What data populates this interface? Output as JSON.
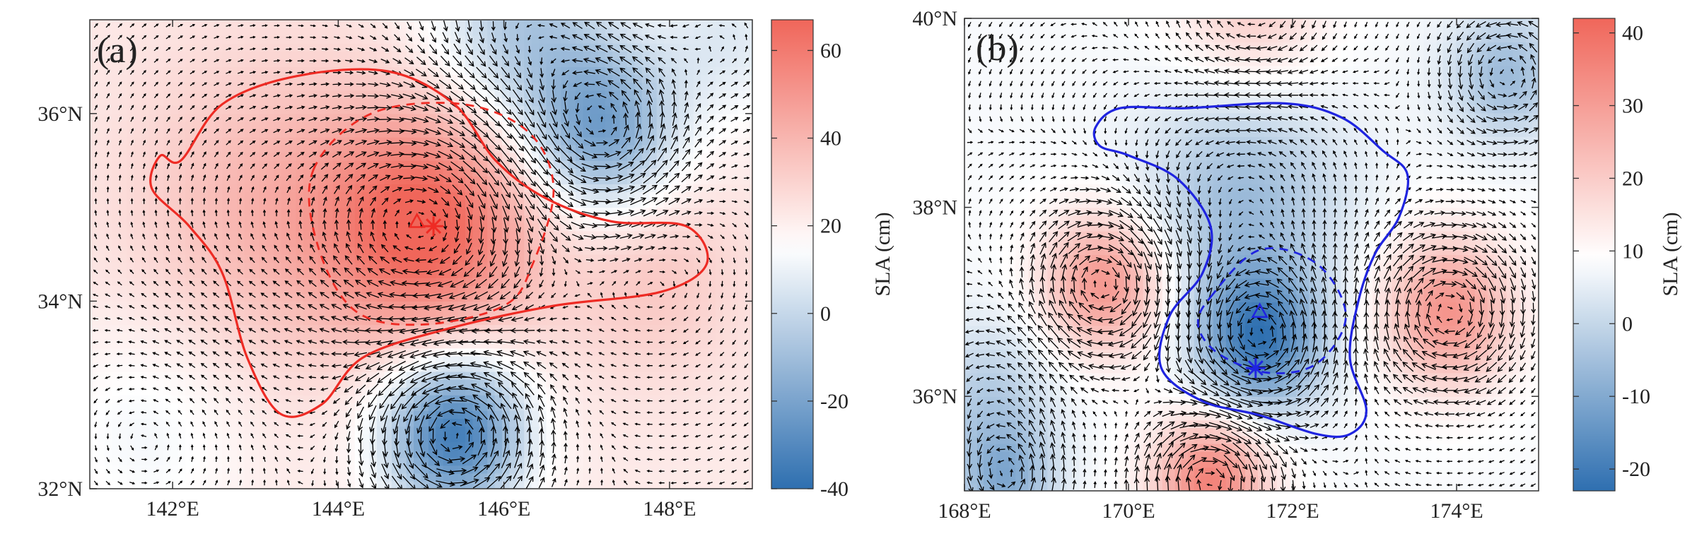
{
  "chart_data": [
    {
      "type": "heatmap",
      "panel_label": "(a)",
      "variable": "SLA with geostrophic current vectors",
      "xlim": [
        141,
        149
      ],
      "ylim": [
        32,
        37
      ],
      "x_ticks": [
        142,
        144,
        146,
        148
      ],
      "x_tick_labels": [
        "142°E",
        "144°E",
        "146°E",
        "148°E"
      ],
      "y_ticks": [
        32,
        34,
        36
      ],
      "y_tick_labels": [
        "32°N",
        "34°N",
        "36°N"
      ],
      "colorbar": {
        "label": "SLA (cm)",
        "range": [
          -40,
          67
        ],
        "ticks": [
          -40,
          -20,
          0,
          20,
          40,
          60
        ],
        "tick_labels": [
          "-40",
          "-20",
          "0",
          "20",
          "40",
          "60"
        ],
        "color_low": "#2e6fb0",
        "color_mid": "#ffffff",
        "color_high": "#f0665a",
        "mid_value": 15
      },
      "features": [
        {
          "kind": "anticyclone",
          "lon": 145.1,
          "lat": 34.8,
          "amp": 45,
          "r": 1.25
        },
        {
          "kind": "anticyclone",
          "lon": 143.2,
          "lat": 35.0,
          "amp": 18,
          "r": 1.6
        },
        {
          "kind": "anticyclone",
          "lon": 147.8,
          "lat": 34.3,
          "amp": 12,
          "r": 1.1
        },
        {
          "kind": "cyclone",
          "lon": 145.4,
          "lat": 32.6,
          "amp": -58,
          "r": 0.85
        },
        {
          "kind": "cyclone",
          "lon": 147.2,
          "lat": 35.8,
          "amp": -42,
          "r": 0.9
        },
        {
          "kind": "cyclone",
          "lon": 146.2,
          "lat": 36.9,
          "amp": -28,
          "r": 1.1
        },
        {
          "kind": "cyclone",
          "lon": 141.7,
          "lat": 32.6,
          "amp": -10,
          "r": 1.2
        },
        {
          "kind": "cyclone",
          "lon": 148.7,
          "lat": 36.8,
          "amp": -15,
          "r": 0.9
        }
      ],
      "base_value": 22,
      "eddy_contour_outer": [
        [
          142.1,
          35.5
        ],
        [
          142.6,
          36.1
        ],
        [
          143.5,
          36.4
        ],
        [
          144.6,
          36.45
        ],
        [
          145.4,
          36.1
        ],
        [
          145.9,
          35.5
        ],
        [
          146.5,
          35.1
        ],
        [
          147.3,
          34.85
        ],
        [
          148.2,
          34.8
        ],
        [
          148.45,
          34.4
        ],
        [
          147.9,
          34.1
        ],
        [
          146.6,
          33.95
        ],
        [
          145.3,
          33.7
        ],
        [
          144.3,
          33.4
        ],
        [
          143.8,
          32.9
        ],
        [
          143.3,
          32.8
        ],
        [
          142.9,
          33.4
        ],
        [
          142.6,
          34.3
        ],
        [
          142.2,
          34.8
        ],
        [
          141.75,
          35.2
        ],
        [
          141.85,
          35.55
        ]
      ],
      "eddy_contour_inner": [
        [
          143.7,
          35.4
        ],
        [
          144.4,
          36.0
        ],
        [
          145.5,
          36.1
        ],
        [
          146.3,
          35.8
        ],
        [
          146.6,
          35.2
        ],
        [
          146.35,
          34.4
        ],
        [
          146.0,
          33.95
        ],
        [
          145.0,
          33.75
        ],
        [
          144.2,
          33.9
        ],
        [
          143.75,
          34.6
        ]
      ],
      "eddy_center_triangle": {
        "lon": 144.95,
        "lat": 34.85
      },
      "eddy_center_star": {
        "lon": 145.15,
        "lat": 34.8
      },
      "contour_color": "#ee2b24"
    },
    {
      "type": "heatmap",
      "panel_label": "(b)",
      "variable": "SLA with geostrophic current vectors",
      "xlim": [
        168,
        175
      ],
      "ylim": [
        35,
        40
      ],
      "x_ticks": [
        168,
        170,
        172,
        174
      ],
      "x_tick_labels": [
        "168°E",
        "170°E",
        "172°E",
        "174°E"
      ],
      "y_ticks": [
        36,
        38,
        40
      ],
      "y_tick_labels": [
        "36°N",
        "38°N",
        "40°N"
      ],
      "colorbar": {
        "label": "SLA (cm)",
        "range": [
          -23,
          42
        ],
        "ticks": [
          -20,
          -10,
          0,
          10,
          20,
          30,
          40
        ],
        "tick_labels": [
          "-20",
          "-10",
          "0",
          "10",
          "20",
          "30",
          "40"
        ],
        "color_low": "#2e6fb0",
        "color_mid": "#ffffff",
        "color_high": "#f0665a",
        "mid_value": 9
      },
      "features": [
        {
          "kind": "cyclone",
          "lon": 171.6,
          "lat": 36.6,
          "amp": -28,
          "r": 0.75
        },
        {
          "kind": "cyclone",
          "lon": 171.4,
          "lat": 38.1,
          "amp": -14,
          "r": 1.2
        },
        {
          "kind": "cyclone",
          "lon": 174.6,
          "lat": 39.4,
          "amp": -14,
          "r": 0.7
        },
        {
          "kind": "cyclone",
          "lon": 168.3,
          "lat": 36.0,
          "amp": -10,
          "r": 0.8
        },
        {
          "kind": "cyclone",
          "lon": 168.5,
          "lat": 35.1,
          "amp": -16,
          "r": 0.6
        },
        {
          "kind": "anticyclone",
          "lon": 169.7,
          "lat": 37.2,
          "amp": 24,
          "r": 0.75
        },
        {
          "kind": "anticyclone",
          "lon": 173.9,
          "lat": 36.9,
          "amp": 24,
          "r": 0.8
        },
        {
          "kind": "anticyclone",
          "lon": 171.0,
          "lat": 35.1,
          "amp": 28,
          "r": 0.7
        },
        {
          "kind": "anticyclone",
          "lon": 171.5,
          "lat": 40.1,
          "amp": 12,
          "r": 0.9
        }
      ],
      "base_value": 8,
      "eddy_contour_outer": [
        [
          169.6,
          38.85
        ],
        [
          169.9,
          39.05
        ],
        [
          170.7,
          39.05
        ],
        [
          171.9,
          39.1
        ],
        [
          172.6,
          38.95
        ],
        [
          173.1,
          38.6
        ],
        [
          173.4,
          38.35
        ],
        [
          173.3,
          37.9
        ],
        [
          173.0,
          37.5
        ],
        [
          172.8,
          37.0
        ],
        [
          172.7,
          36.4
        ],
        [
          172.9,
          35.85
        ],
        [
          172.7,
          35.6
        ],
        [
          172.3,
          35.6
        ],
        [
          171.6,
          35.8
        ],
        [
          170.9,
          35.95
        ],
        [
          170.4,
          36.3
        ],
        [
          170.5,
          36.85
        ],
        [
          170.9,
          37.3
        ],
        [
          171.0,
          37.8
        ],
        [
          170.6,
          38.3
        ],
        [
          170.0,
          38.55
        ],
        [
          169.65,
          38.65
        ]
      ],
      "eddy_contour_inner": [
        [
          171.0,
          37.05
        ],
        [
          171.6,
          37.55
        ],
        [
          172.3,
          37.4
        ],
        [
          172.65,
          36.85
        ],
        [
          172.3,
          36.35
        ],
        [
          171.7,
          36.25
        ],
        [
          171.1,
          36.45
        ],
        [
          170.85,
          36.75
        ]
      ],
      "eddy_center_triangle": {
        "lon": 171.6,
        "lat": 36.9
      },
      "eddy_center_star": {
        "lon": 171.55,
        "lat": 36.3
      },
      "contour_color": "#1f24e0"
    }
  ]
}
